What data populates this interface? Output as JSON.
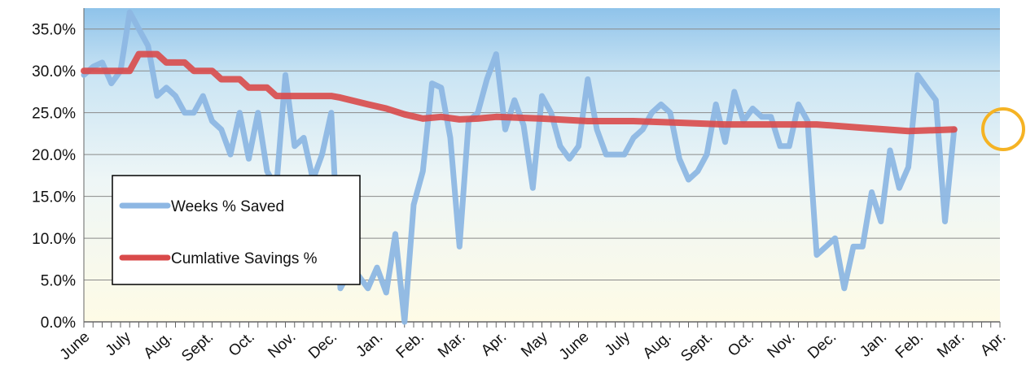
{
  "chart_data": {
    "type": "line",
    "title": "",
    "xlabel": "",
    "ylabel": "",
    "ylim": [
      0,
      37.5
    ],
    "yticks": [
      "0.0%",
      "5.0%",
      "10.0%",
      "15.0%",
      "20.0%",
      "25.0%",
      "30.0%",
      "35.0%"
    ],
    "grid": true,
    "legend_position": "bottom-left",
    "x_range": [
      0,
      100
    ],
    "month_labels": [
      {
        "label": "June",
        "x": 0
      },
      {
        "label": "July",
        "x": 4.5
      },
      {
        "label": "Aug.",
        "x": 9
      },
      {
        "label": "Sept.",
        "x": 13.5
      },
      {
        "label": "Oct.",
        "x": 18
      },
      {
        "label": "Nov.",
        "x": 22.5
      },
      {
        "label": "Dec.",
        "x": 27
      },
      {
        "label": "Jan.",
        "x": 32
      },
      {
        "label": "Feb.",
        "x": 36.5
      },
      {
        "label": "Mar.",
        "x": 41
      },
      {
        "label": "Apr.",
        "x": 45.5
      },
      {
        "label": "May",
        "x": 50
      },
      {
        "label": "June",
        "x": 54.5
      },
      {
        "label": "July",
        "x": 59
      },
      {
        "label": "Aug.",
        "x": 63.5
      },
      {
        "label": "Sept.",
        "x": 68
      },
      {
        "label": "Oct.",
        "x": 72.5
      },
      {
        "label": "Nov.",
        "x": 77
      },
      {
        "label": "Dec.",
        "x": 81.5
      },
      {
        "label": "Jan.",
        "x": 87
      },
      {
        "label": "Feb.",
        "x": 91
      },
      {
        "label": "Mar.",
        "x": 95.5
      },
      {
        "label": "Apr.",
        "x": 100
      }
    ],
    "series": [
      {
        "name": "Weeks % Saved",
        "color": "#8db7e3",
        "points": [
          [
            0,
            29.5
          ],
          [
            1,
            30.5
          ],
          [
            2,
            31
          ],
          [
            3,
            28.5
          ],
          [
            4,
            30
          ],
          [
            5,
            37
          ],
          [
            6,
            35
          ],
          [
            7,
            33
          ],
          [
            8,
            27
          ],
          [
            9,
            28
          ],
          [
            10,
            27
          ],
          [
            11,
            25
          ],
          [
            12,
            25
          ],
          [
            13,
            27
          ],
          [
            14,
            24
          ],
          [
            15,
            23
          ],
          [
            16,
            20
          ],
          [
            17,
            25
          ],
          [
            18,
            19.5
          ],
          [
            19,
            25
          ],
          [
            20,
            18
          ],
          [
            21,
            16
          ],
          [
            22,
            29.5
          ],
          [
            23,
            21
          ],
          [
            24,
            22
          ],
          [
            25,
            17
          ],
          [
            26,
            20
          ],
          [
            27,
            25
          ],
          [
            28,
            4
          ],
          [
            29,
            6
          ],
          [
            30,
            5.5
          ],
          [
            31,
            4
          ],
          [
            32,
            6.5
          ],
          [
            33,
            3.5
          ],
          [
            34,
            10.5
          ],
          [
            35,
            0
          ],
          [
            36,
            14
          ],
          [
            37,
            18
          ],
          [
            38,
            28.5
          ],
          [
            39,
            28
          ],
          [
            40,
            22
          ],
          [
            41,
            9
          ],
          [
            42,
            24
          ],
          [
            43,
            25
          ],
          [
            44,
            29
          ],
          [
            45,
            32
          ],
          [
            46,
            23
          ],
          [
            47,
            26.5
          ],
          [
            48,
            23.5
          ],
          [
            49,
            16
          ],
          [
            50,
            27
          ],
          [
            51,
            25
          ],
          [
            52,
            21
          ],
          [
            53,
            19.5
          ],
          [
            54,
            21
          ],
          [
            55,
            29
          ],
          [
            56,
            23
          ],
          [
            57,
            20
          ],
          [
            58,
            20
          ],
          [
            59,
            20
          ],
          [
            60,
            22
          ],
          [
            61,
            23
          ],
          [
            62,
            25
          ],
          [
            63,
            26
          ],
          [
            64,
            25
          ],
          [
            65,
            19.5
          ],
          [
            66,
            17
          ],
          [
            67,
            18
          ],
          [
            68,
            20
          ],
          [
            69,
            26
          ],
          [
            70,
            21.5
          ],
          [
            71,
            27.5
          ],
          [
            72,
            24
          ],
          [
            73,
            25.5
          ],
          [
            74,
            24.5
          ],
          [
            75,
            24.5
          ],
          [
            76,
            21
          ],
          [
            77,
            21
          ],
          [
            78,
            26
          ],
          [
            79,
            24
          ],
          [
            80,
            8
          ],
          [
            81,
            9
          ],
          [
            82,
            10
          ],
          [
            83,
            4
          ],
          [
            84,
            9
          ],
          [
            85,
            9
          ],
          [
            86,
            15.5
          ],
          [
            87,
            12
          ],
          [
            88,
            20.5
          ],
          [
            89,
            16
          ],
          [
            90,
            18.5
          ],
          [
            91,
            29.5
          ],
          [
            92,
            28
          ],
          [
            93,
            26.5
          ],
          [
            94,
            12
          ],
          [
            95,
            23
          ]
        ]
      },
      {
        "name": "Cumlative  Savings %",
        "color": "#d94a4a",
        "points": [
          [
            0,
            30
          ],
          [
            4,
            30
          ],
          [
            5,
            30
          ],
          [
            6,
            32
          ],
          [
            8,
            32
          ],
          [
            9,
            31
          ],
          [
            11,
            31
          ],
          [
            12,
            30
          ],
          [
            14,
            30
          ],
          [
            15,
            29
          ],
          [
            17,
            29
          ],
          [
            18,
            28
          ],
          [
            20,
            28
          ],
          [
            21,
            27
          ],
          [
            24,
            27
          ],
          [
            27,
            27
          ],
          [
            28,
            26.8
          ],
          [
            31,
            26
          ],
          [
            33,
            25.5
          ],
          [
            35,
            24.8
          ],
          [
            37,
            24.3
          ],
          [
            39,
            24.5
          ],
          [
            41,
            24.2
          ],
          [
            43,
            24.3
          ],
          [
            45,
            24.5
          ],
          [
            50,
            24.3
          ],
          [
            55,
            24
          ],
          [
            60,
            24
          ],
          [
            65,
            23.8
          ],
          [
            70,
            23.6
          ],
          [
            75,
            23.6
          ],
          [
            80,
            23.6
          ],
          [
            85,
            23.2
          ],
          [
            90,
            22.8
          ],
          [
            95,
            23
          ]
        ]
      }
    ]
  }
}
